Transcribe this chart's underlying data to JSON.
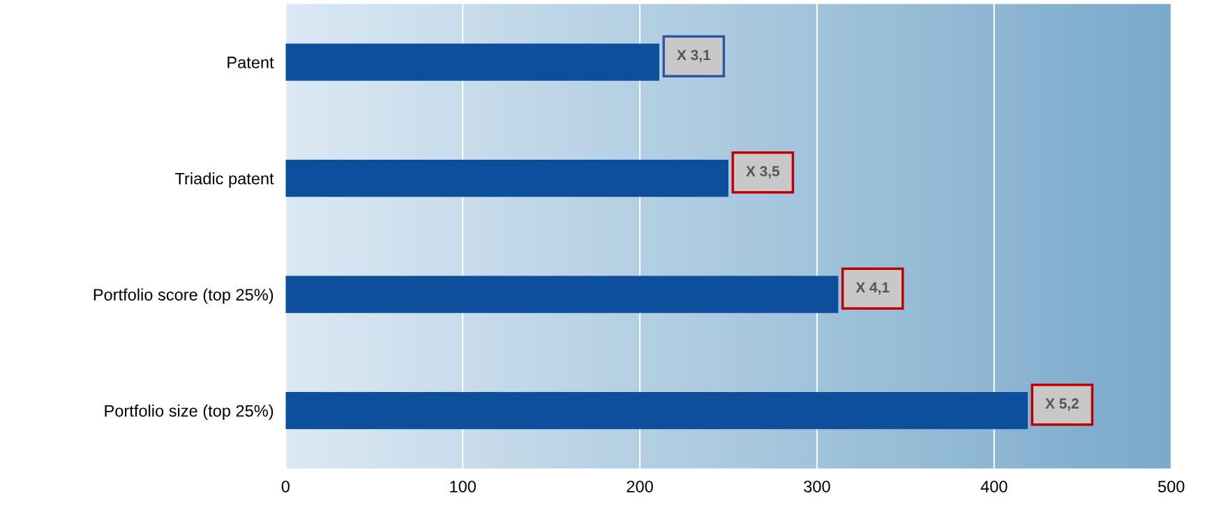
{
  "chart_data": {
    "type": "bar",
    "orientation": "horizontal",
    "categories": [
      "Patent",
      "Triadic patent",
      "Portfolio score (top 25%)",
      "Portfolio size (top 25%)"
    ],
    "values": [
      211,
      250,
      312,
      419
    ],
    "color": "#0e4f9c",
    "xlim": [
      0,
      500
    ],
    "xticks": [
      0,
      100,
      200,
      300,
      400,
      500
    ],
    "grid": "x",
    "annotations": [
      {
        "text": "X 3,1",
        "x": 211,
        "y": "Patent"
      },
      {
        "text": "X 3,5",
        "x": 250,
        "y": "Triadic patent"
      },
      {
        "text": "X 4,1",
        "x": 312,
        "y": "Portfolio score (top 25%)"
      },
      {
        "text": "X 5,2",
        "x": 419,
        "y": "Portfolio size (top 25%)"
      }
    ]
  }
}
